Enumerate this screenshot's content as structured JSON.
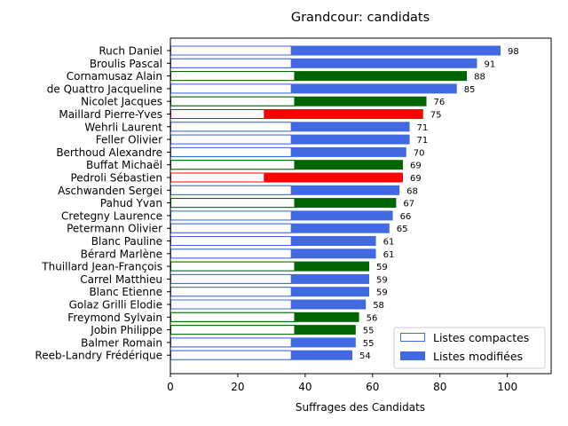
{
  "chart_data": {
    "type": "bar",
    "orientation": "horizontal",
    "title": "Grandcour: candidats",
    "xlabel": "Suffrages des Candidats",
    "ylabel": "",
    "xlim": [
      0,
      113
    ],
    "xticks": [
      0,
      20,
      40,
      60,
      80,
      100
    ],
    "grid": false,
    "legend_position": "lower-right",
    "categories": [
      "Ruch Daniel",
      "Broulis Pascal",
      "Cornamusaz Alain",
      "de Quattro Jacqueline",
      "Nicolet Jacques",
      "Maillard Pierre-Yves",
      "Wehrli Laurent",
      "Feller Olivier",
      "Berthoud Alexandre",
      "Buffat Michaël",
      "Pedroli Sébastien",
      "Aschwanden Sergei",
      "Pahud Yvan",
      "Cretegny Laurence",
      "Petermann Olivier",
      "Blanc Pauline",
      "Bérard Marlène",
      "Thuillard Jean-François",
      "Carrel Matthieu",
      "Blanc Etienne",
      "Golaz Grilli Elodie",
      "Freymond Sylvain",
      "Jobin Philippe",
      "Balmer Romain",
      "Reeb-Landry Frédérique"
    ],
    "colors": [
      "#4169e1",
      "#4169e1",
      "#006400",
      "#4169e1",
      "#006400",
      "#ff0000",
      "#4169e1",
      "#4169e1",
      "#4169e1",
      "#006400",
      "#ff0000",
      "#4169e1",
      "#006400",
      "#4169e1",
      "#4169e1",
      "#4169e1",
      "#4169e1",
      "#006400",
      "#4169e1",
      "#4169e1",
      "#4169e1",
      "#006400",
      "#006400",
      "#4169e1",
      "#4169e1"
    ],
    "series": [
      {
        "name": "Listes compactes",
        "style": "outline",
        "values": [
          36,
          36,
          37,
          36,
          37,
          28,
          36,
          36,
          36,
          37,
          28,
          36,
          37,
          36,
          36,
          36,
          36,
          37,
          36,
          36,
          36,
          37,
          37,
          36,
          36
        ]
      },
      {
        "name": "Listes modifiées",
        "style": "filled",
        "values": [
          98,
          91,
          88,
          85,
          76,
          75,
          71,
          71,
          70,
          69,
          69,
          68,
          67,
          66,
          65,
          61,
          61,
          59,
          59,
          59,
          58,
          56,
          55,
          55,
          54
        ]
      }
    ],
    "value_labels": [
      "98",
      "91",
      "88",
      "85",
      "76",
      "75",
      "71",
      "71",
      "70",
      "69",
      "69",
      "68",
      "67",
      "66",
      "65",
      "61",
      "61",
      "59",
      "59",
      "59",
      "58",
      "56",
      "55",
      "55",
      "54"
    ],
    "legend_swatch_color": "#4169e1"
  }
}
